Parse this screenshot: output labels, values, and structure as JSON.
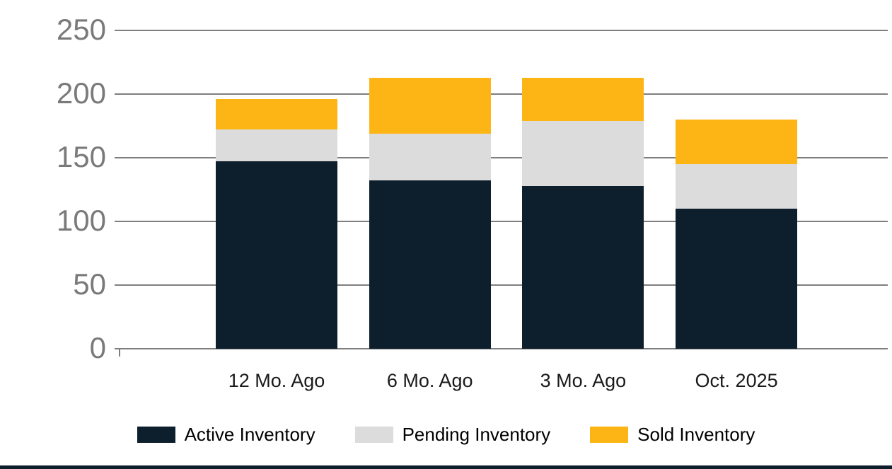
{
  "chart_data": {
    "type": "bar",
    "stacked": true,
    "title": "",
    "categories": [
      "12 Mo. Ago",
      "6 Mo. Ago",
      "3 Mo. Ago",
      "Oct. 2025"
    ],
    "series": [
      {
        "name": "Active Inventory",
        "color": "#0d1e2c",
        "values": [
          147,
          132,
          128,
          110
        ]
      },
      {
        "name": "Pending Inventory",
        "color": "#dcdcdc",
        "values": [
          25,
          37,
          51,
          35
        ]
      },
      {
        "name": "Sold Inventory",
        "color": "#fdb515",
        "values": [
          24,
          44,
          34,
          35
        ]
      }
    ],
    "totals": [
      196,
      213,
      213,
      180
    ],
    "ylim": [
      0,
      250
    ],
    "yticks": [
      0,
      50,
      100,
      150,
      200,
      250
    ],
    "grid": "horizontal",
    "legend_position": "bottom"
  },
  "colors": {
    "background": "#ffffff",
    "grid": "#7f7f7f",
    "tick_label": "#7a7a7a",
    "x_label": "#1a1a1a",
    "legend_label": "#000000",
    "bottom_strip": "#0d1e2c"
  }
}
